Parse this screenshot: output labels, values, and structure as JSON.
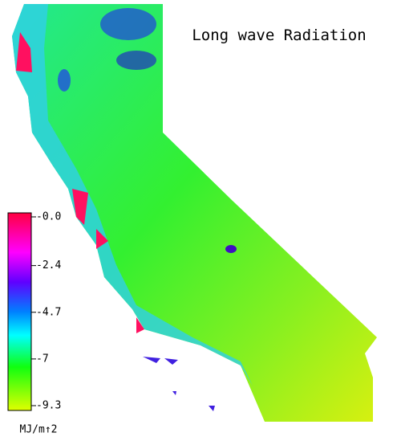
{
  "title": "Long wave Radiation",
  "colorbar": {
    "lim": [
      -9.3,
      0
    ],
    "ticks": [
      {
        "value": 0,
        "label": "-0.0"
      },
      -2.4,
      -4.7,
      -7.0,
      -9.3
    ],
    "unit": "MJ/m↑2"
  }
}
